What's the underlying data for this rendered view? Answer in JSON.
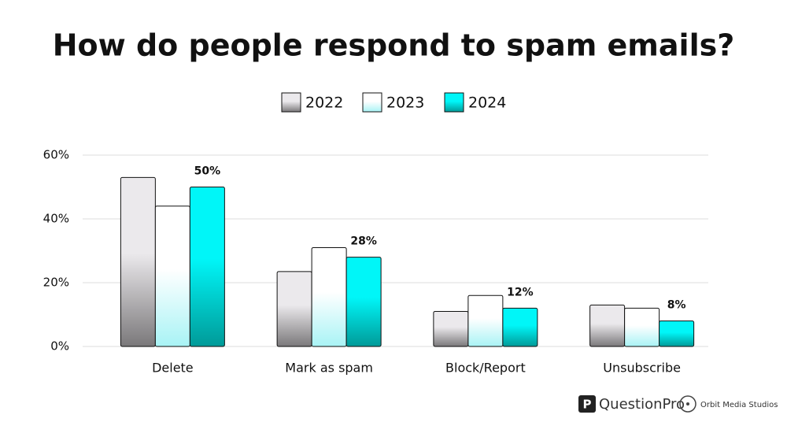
{
  "chart_data": {
    "type": "bar",
    "title": "How do people respond to spam emails?",
    "categories": [
      "Delete",
      "Mark as spam",
      "Block/Report",
      "Unsubscribe"
    ],
    "series": [
      {
        "name": "2022",
        "color": [
          "#ebe9ec",
          "#7a787a"
        ],
        "values": [
          53,
          23.5,
          11,
          13
        ]
      },
      {
        "name": "2023",
        "color": [
          "#ffffff",
          "#a8f3f5"
        ],
        "values": [
          44,
          31,
          16,
          12
        ]
      },
      {
        "name": "2024",
        "color": [
          "#00f6f8",
          "#009a98"
        ],
        "values": [
          50,
          28,
          12,
          8
        ],
        "value_labels": [
          "50%",
          "28%",
          "12%",
          "8%"
        ]
      }
    ],
    "ylim": [
      0,
      60
    ],
    "yticks": [
      {
        "value": 0,
        "label": "0%"
      },
      {
        "value": 20,
        "label": "20%"
      },
      {
        "value": 40,
        "label": "40%"
      },
      {
        "value": 60,
        "label": "60%"
      }
    ],
    "grid": true,
    "legend": "top"
  },
  "footer": {
    "logos": [
      "QuestionPro",
      "Orbit Media Studios"
    ]
  }
}
